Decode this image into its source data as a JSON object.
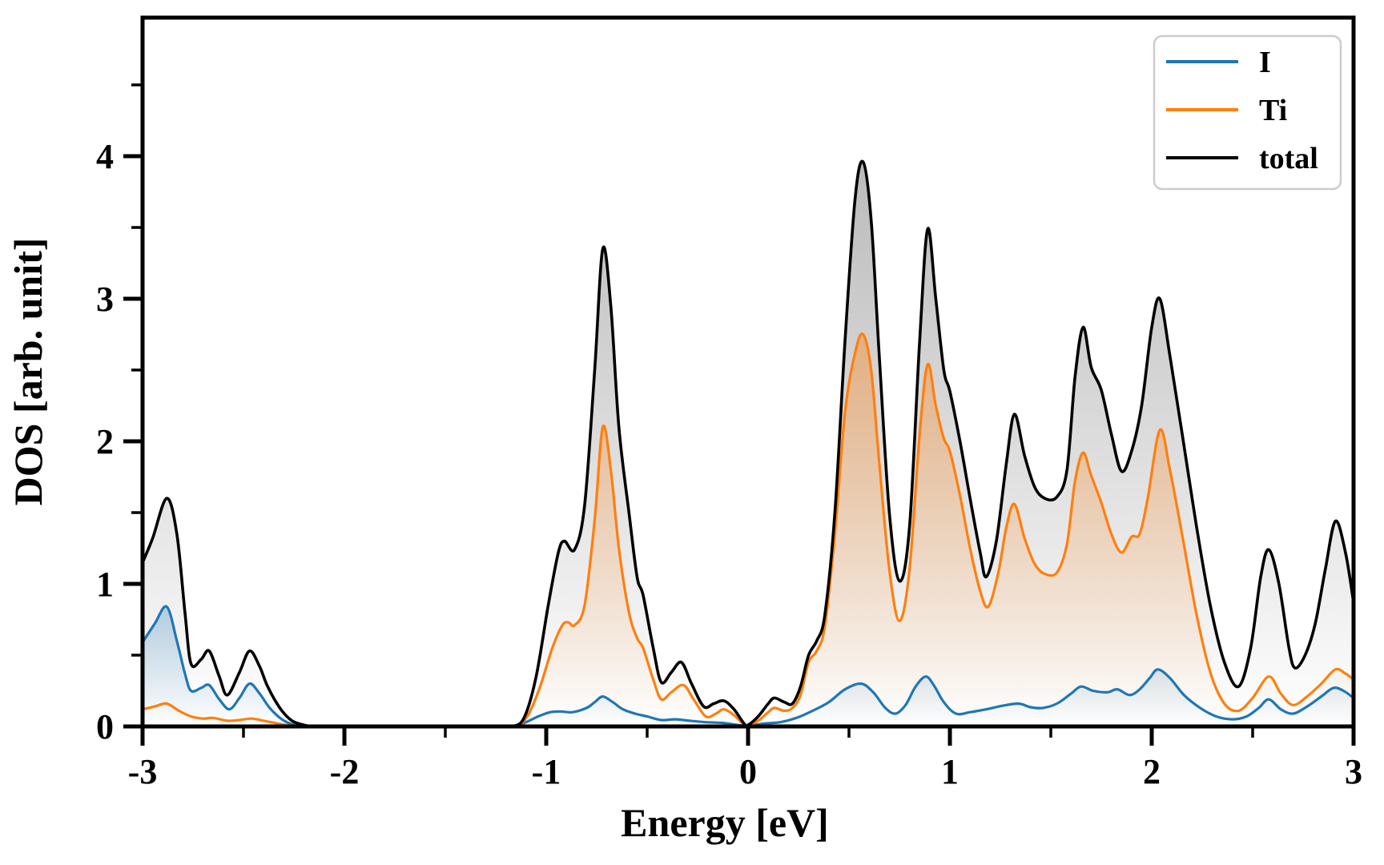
{
  "figure": {
    "background": "#ffffff",
    "frame_color": "#000000"
  },
  "chart_data": {
    "type": "line",
    "title": "",
    "xlabel": "Energy [eV]",
    "ylabel": "DOS [arb. unit]",
    "xlim": [
      -3,
      3
    ],
    "ylim": [
      0,
      4.97
    ],
    "x_ticks": [
      -3,
      -2,
      -1,
      0,
      1,
      2,
      3
    ],
    "x_minor_ticks": [
      -2.5,
      -1.5,
      -0.5,
      0.5,
      1.5,
      2.5
    ],
    "y_ticks": [
      0,
      1,
      2,
      3,
      4
    ],
    "y_minor_ticks": [
      0.5,
      1.5,
      2.5,
      3.5,
      4.5
    ],
    "grid": false,
    "legend_position": "upper right",
    "series": [
      {
        "name": "I",
        "color": "#1f77b4",
        "fill_color": "#1f77b4",
        "fill_top_opacity": 0.3,
        "points": [
          [
            -3.0,
            0.59
          ],
          [
            -2.94,
            0.72
          ],
          [
            -2.88,
            0.84
          ],
          [
            -2.83,
            0.6
          ],
          [
            -2.79,
            0.37
          ],
          [
            -2.76,
            0.25
          ],
          [
            -2.71,
            0.27
          ],
          [
            -2.67,
            0.29
          ],
          [
            -2.62,
            0.19
          ],
          [
            -2.57,
            0.12
          ],
          [
            -2.52,
            0.2
          ],
          [
            -2.47,
            0.3
          ],
          [
            -2.42,
            0.23
          ],
          [
            -2.37,
            0.13
          ],
          [
            -2.31,
            0.05
          ],
          [
            -2.25,
            0.01
          ],
          [
            -2.2,
            0.0
          ],
          [
            -2.0,
            0.0
          ],
          [
            -1.8,
            0.0
          ],
          [
            -1.6,
            0.0
          ],
          [
            -1.4,
            0.0
          ],
          [
            -1.25,
            0.0
          ],
          [
            -1.16,
            0.0
          ],
          [
            -1.1,
            0.03
          ],
          [
            -1.04,
            0.07
          ],
          [
            -0.98,
            0.1
          ],
          [
            -0.93,
            0.105
          ],
          [
            -0.87,
            0.1
          ],
          [
            -0.8,
            0.13
          ],
          [
            -0.76,
            0.17
          ],
          [
            -0.72,
            0.21
          ],
          [
            -0.67,
            0.17
          ],
          [
            -0.62,
            0.12
          ],
          [
            -0.56,
            0.09
          ],
          [
            -0.5,
            0.07
          ],
          [
            -0.43,
            0.045
          ],
          [
            -0.36,
            0.05
          ],
          [
            -0.29,
            0.04
          ],
          [
            -0.21,
            0.03
          ],
          [
            -0.13,
            0.025
          ],
          [
            -0.05,
            0.01
          ],
          [
            0.0,
            0.005
          ],
          [
            0.08,
            0.02
          ],
          [
            0.16,
            0.03
          ],
          [
            0.24,
            0.06
          ],
          [
            0.32,
            0.11
          ],
          [
            0.4,
            0.17
          ],
          [
            0.48,
            0.26
          ],
          [
            0.56,
            0.3
          ],
          [
            0.62,
            0.24
          ],
          [
            0.68,
            0.13
          ],
          [
            0.73,
            0.09
          ],
          [
            0.78,
            0.15
          ],
          [
            0.83,
            0.28
          ],
          [
            0.88,
            0.35
          ],
          [
            0.92,
            0.29
          ],
          [
            0.97,
            0.17
          ],
          [
            1.03,
            0.09
          ],
          [
            1.1,
            0.1
          ],
          [
            1.18,
            0.12
          ],
          [
            1.26,
            0.145
          ],
          [
            1.34,
            0.16
          ],
          [
            1.4,
            0.135
          ],
          [
            1.46,
            0.13
          ],
          [
            1.53,
            0.16
          ],
          [
            1.6,
            0.23
          ],
          [
            1.65,
            0.28
          ],
          [
            1.71,
            0.25
          ],
          [
            1.78,
            0.24
          ],
          [
            1.83,
            0.26
          ],
          [
            1.89,
            0.22
          ],
          [
            1.94,
            0.26
          ],
          [
            1.99,
            0.34
          ],
          [
            2.03,
            0.4
          ],
          [
            2.09,
            0.34
          ],
          [
            2.16,
            0.22
          ],
          [
            2.24,
            0.13
          ],
          [
            2.32,
            0.07
          ],
          [
            2.4,
            0.05
          ],
          [
            2.47,
            0.07
          ],
          [
            2.53,
            0.13
          ],
          [
            2.58,
            0.19
          ],
          [
            2.64,
            0.12
          ],
          [
            2.7,
            0.09
          ],
          [
            2.77,
            0.14
          ],
          [
            2.84,
            0.21
          ],
          [
            2.9,
            0.27
          ],
          [
            2.95,
            0.25
          ],
          [
            3.0,
            0.2
          ]
        ]
      },
      {
        "name": "Ti",
        "color": "#ff7f0e",
        "fill_color": "#ff7f0e",
        "fill_top_opacity": 0.4,
        "points": [
          [
            -3.0,
            0.12
          ],
          [
            -2.94,
            0.14
          ],
          [
            -2.88,
            0.16
          ],
          [
            -2.82,
            0.11
          ],
          [
            -2.76,
            0.07
          ],
          [
            -2.7,
            0.055
          ],
          [
            -2.65,
            0.06
          ],
          [
            -2.58,
            0.04
          ],
          [
            -2.52,
            0.045
          ],
          [
            -2.46,
            0.055
          ],
          [
            -2.4,
            0.04
          ],
          [
            -2.33,
            0.02
          ],
          [
            -2.26,
            0.005
          ],
          [
            -2.2,
            0.0
          ],
          [
            -2.0,
            0.0
          ],
          [
            -1.8,
            0.0
          ],
          [
            -1.6,
            0.0
          ],
          [
            -1.4,
            0.0
          ],
          [
            -1.25,
            0.0
          ],
          [
            -1.15,
            0.0
          ],
          [
            -1.09,
            0.08
          ],
          [
            -1.03,
            0.28
          ],
          [
            -0.97,
            0.55
          ],
          [
            -0.92,
            0.71
          ],
          [
            -0.89,
            0.73
          ],
          [
            -0.86,
            0.71
          ],
          [
            -0.81,
            0.85
          ],
          [
            -0.76,
            1.45
          ],
          [
            -0.72,
            2.1
          ],
          [
            -0.68,
            1.8
          ],
          [
            -0.64,
            1.25
          ],
          [
            -0.59,
            0.8
          ],
          [
            -0.55,
            0.62
          ],
          [
            -0.52,
            0.55
          ],
          [
            -0.47,
            0.33
          ],
          [
            -0.43,
            0.19
          ],
          [
            -0.38,
            0.24
          ],
          [
            -0.32,
            0.29
          ],
          [
            -0.27,
            0.19
          ],
          [
            -0.21,
            0.07
          ],
          [
            -0.16,
            0.09
          ],
          [
            -0.12,
            0.12
          ],
          [
            -0.07,
            0.08
          ],
          [
            -0.02,
            0.01
          ],
          [
            0.0,
            0.005
          ],
          [
            0.05,
            0.04
          ],
          [
            0.1,
            0.1
          ],
          [
            0.13,
            0.13
          ],
          [
            0.18,
            0.11
          ],
          [
            0.22,
            0.13
          ],
          [
            0.26,
            0.22
          ],
          [
            0.3,
            0.45
          ],
          [
            0.34,
            0.53
          ],
          [
            0.38,
            0.7
          ],
          [
            0.43,
            1.35
          ],
          [
            0.48,
            2.2
          ],
          [
            0.53,
            2.62
          ],
          [
            0.57,
            2.75
          ],
          [
            0.61,
            2.5
          ],
          [
            0.65,
            1.85
          ],
          [
            0.7,
            1.1
          ],
          [
            0.75,
            0.74
          ],
          [
            0.8,
            1.1
          ],
          [
            0.85,
            2.05
          ],
          [
            0.89,
            2.54
          ],
          [
            0.93,
            2.25
          ],
          [
            0.97,
            2.02
          ],
          [
            1.0,
            1.93
          ],
          [
            1.05,
            1.62
          ],
          [
            1.1,
            1.25
          ],
          [
            1.15,
            0.95
          ],
          [
            1.19,
            0.84
          ],
          [
            1.24,
            1.08
          ],
          [
            1.28,
            1.4
          ],
          [
            1.32,
            1.56
          ],
          [
            1.37,
            1.32
          ],
          [
            1.42,
            1.14
          ],
          [
            1.47,
            1.07
          ],
          [
            1.53,
            1.08
          ],
          [
            1.58,
            1.28
          ],
          [
            1.62,
            1.72
          ],
          [
            1.66,
            1.92
          ],
          [
            1.7,
            1.76
          ],
          [
            1.75,
            1.57
          ],
          [
            1.8,
            1.35
          ],
          [
            1.85,
            1.22
          ],
          [
            1.9,
            1.33
          ],
          [
            1.94,
            1.35
          ],
          [
            1.98,
            1.6
          ],
          [
            2.04,
            2.08
          ],
          [
            2.09,
            1.8
          ],
          [
            2.15,
            1.35
          ],
          [
            2.22,
            0.8
          ],
          [
            2.29,
            0.38
          ],
          [
            2.36,
            0.16
          ],
          [
            2.43,
            0.11
          ],
          [
            2.5,
            0.2
          ],
          [
            2.58,
            0.35
          ],
          [
            2.64,
            0.23
          ],
          [
            2.7,
            0.15
          ],
          [
            2.77,
            0.21
          ],
          [
            2.84,
            0.3
          ],
          [
            2.91,
            0.4
          ],
          [
            2.96,
            0.37
          ],
          [
            3.0,
            0.33
          ]
        ]
      },
      {
        "name": "total",
        "color": "#000000",
        "fill_color": "#666666",
        "fill_top_opacity": 0.45,
        "points": [
          [
            -3.0,
            1.15
          ],
          [
            -2.95,
            1.32
          ],
          [
            -2.88,
            1.6
          ],
          [
            -2.83,
            1.35
          ],
          [
            -2.79,
            0.8
          ],
          [
            -2.76,
            0.44
          ],
          [
            -2.71,
            0.47
          ],
          [
            -2.67,
            0.53
          ],
          [
            -2.62,
            0.35
          ],
          [
            -2.58,
            0.22
          ],
          [
            -2.52,
            0.38
          ],
          [
            -2.47,
            0.53
          ],
          [
            -2.42,
            0.42
          ],
          [
            -2.38,
            0.28
          ],
          [
            -2.32,
            0.13
          ],
          [
            -2.26,
            0.04
          ],
          [
            -2.2,
            0.01
          ],
          [
            -2.15,
            0.0
          ],
          [
            -2.0,
            0.0
          ],
          [
            -1.8,
            0.0
          ],
          [
            -1.6,
            0.0
          ],
          [
            -1.4,
            0.0
          ],
          [
            -1.25,
            0.0
          ],
          [
            -1.17,
            0.0
          ],
          [
            -1.11,
            0.06
          ],
          [
            -1.05,
            0.35
          ],
          [
            -0.99,
            0.85
          ],
          [
            -0.94,
            1.22
          ],
          [
            -0.91,
            1.3
          ],
          [
            -0.86,
            1.24
          ],
          [
            -0.81,
            1.55
          ],
          [
            -0.76,
            2.5
          ],
          [
            -0.72,
            3.35
          ],
          [
            -0.68,
            2.95
          ],
          [
            -0.64,
            2.1
          ],
          [
            -0.59,
            1.5
          ],
          [
            -0.55,
            1.05
          ],
          [
            -0.52,
            0.92
          ],
          [
            -0.47,
            0.55
          ],
          [
            -0.43,
            0.31
          ],
          [
            -0.38,
            0.38
          ],
          [
            -0.33,
            0.45
          ],
          [
            -0.28,
            0.3
          ],
          [
            -0.22,
            0.14
          ],
          [
            -0.17,
            0.16
          ],
          [
            -0.12,
            0.18
          ],
          [
            -0.07,
            0.12
          ],
          [
            -0.02,
            0.02
          ],
          [
            0.0,
            0.01
          ],
          [
            0.05,
            0.07
          ],
          [
            0.1,
            0.16
          ],
          [
            0.13,
            0.2
          ],
          [
            0.18,
            0.17
          ],
          [
            0.22,
            0.16
          ],
          [
            0.26,
            0.28
          ],
          [
            0.3,
            0.5
          ],
          [
            0.34,
            0.6
          ],
          [
            0.38,
            0.78
          ],
          [
            0.43,
            1.5
          ],
          [
            0.48,
            2.7
          ],
          [
            0.53,
            3.7
          ],
          [
            0.57,
            3.96
          ],
          [
            0.61,
            3.55
          ],
          [
            0.65,
            2.6
          ],
          [
            0.7,
            1.5
          ],
          [
            0.75,
            1.02
          ],
          [
            0.8,
            1.4
          ],
          [
            0.85,
            2.7
          ],
          [
            0.89,
            3.49
          ],
          [
            0.93,
            3.0
          ],
          [
            0.97,
            2.5
          ],
          [
            1.0,
            2.35
          ],
          [
            1.05,
            2.0
          ],
          [
            1.1,
            1.6
          ],
          [
            1.15,
            1.22
          ],
          [
            1.18,
            1.05
          ],
          [
            1.23,
            1.3
          ],
          [
            1.28,
            1.85
          ],
          [
            1.32,
            2.19
          ],
          [
            1.37,
            1.9
          ],
          [
            1.42,
            1.68
          ],
          [
            1.47,
            1.6
          ],
          [
            1.53,
            1.61
          ],
          [
            1.58,
            1.8
          ],
          [
            1.62,
            2.45
          ],
          [
            1.66,
            2.8
          ],
          [
            1.7,
            2.52
          ],
          [
            1.75,
            2.36
          ],
          [
            1.8,
            2.05
          ],
          [
            1.85,
            1.79
          ],
          [
            1.9,
            1.93
          ],
          [
            1.95,
            2.25
          ],
          [
            2.0,
            2.8
          ],
          [
            2.04,
            3.0
          ],
          [
            2.09,
            2.6
          ],
          [
            2.15,
            2.06
          ],
          [
            2.22,
            1.42
          ],
          [
            2.29,
            0.85
          ],
          [
            2.36,
            0.45
          ],
          [
            2.43,
            0.28
          ],
          [
            2.49,
            0.55
          ],
          [
            2.54,
            1.05
          ],
          [
            2.58,
            1.24
          ],
          [
            2.63,
            1.0
          ],
          [
            2.68,
            0.55
          ],
          [
            2.71,
            0.41
          ],
          [
            2.76,
            0.5
          ],
          [
            2.81,
            0.72
          ],
          [
            2.86,
            1.1
          ],
          [
            2.91,
            1.44
          ],
          [
            2.96,
            1.22
          ],
          [
            3.0,
            0.87
          ]
        ]
      }
    ],
    "legend": {
      "entries": [
        "I",
        "Ti",
        "total"
      ],
      "border_color": "#cccccc",
      "background": "#ffffff"
    }
  }
}
